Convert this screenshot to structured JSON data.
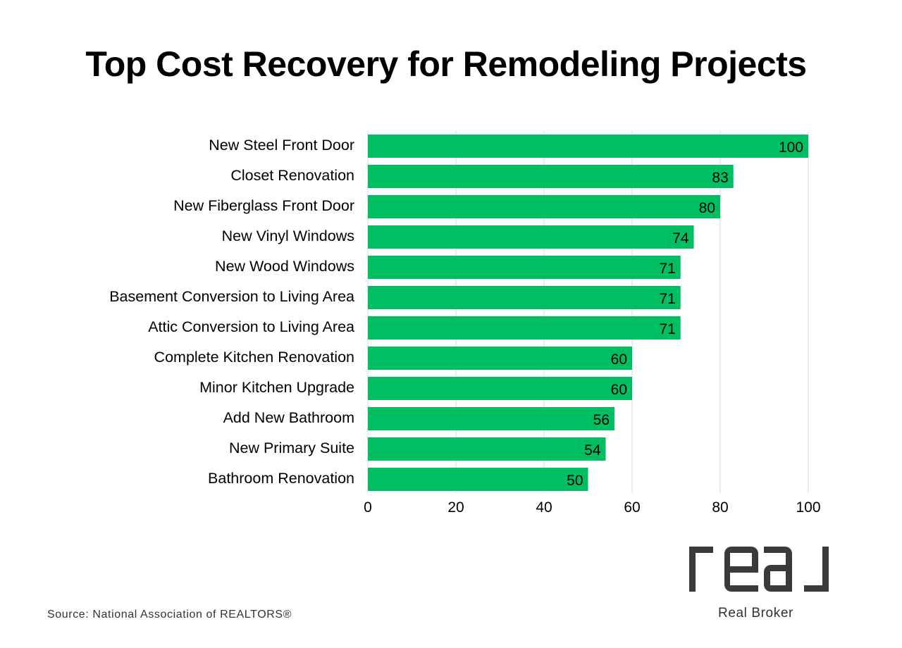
{
  "chart_data": {
    "type": "bar",
    "orientation": "horizontal",
    "title": "Top Cost Recovery for Remodeling Projects",
    "categories": [
      "New Steel Front Door",
      "Closet Renovation",
      "New Fiberglass Front Door",
      "New Vinyl Windows",
      "New Wood Windows",
      "Basement Conversion to Living Area",
      "Attic Conversion to Living Area",
      "Complete Kitchen Renovation",
      "Minor Kitchen Upgrade",
      "Add New Bathroom",
      "New Primary Suite",
      "Bathroom Renovation"
    ],
    "values": [
      100,
      83,
      80,
      74,
      71,
      71,
      71,
      60,
      60,
      56,
      54,
      50
    ],
    "xlim": [
      0,
      100
    ],
    "xticks": [
      0,
      20,
      40,
      60,
      80,
      100
    ],
    "xlabel": "",
    "ylabel": "",
    "grid": "vertical",
    "legend": "none",
    "bar_color": "#00bf63",
    "gridline_color": "#d9d9d9"
  },
  "source": "Source: National Association of REALTORS®",
  "brand": {
    "logo_text": "real",
    "name": "Real Broker",
    "color": "#3a3a3a"
  }
}
